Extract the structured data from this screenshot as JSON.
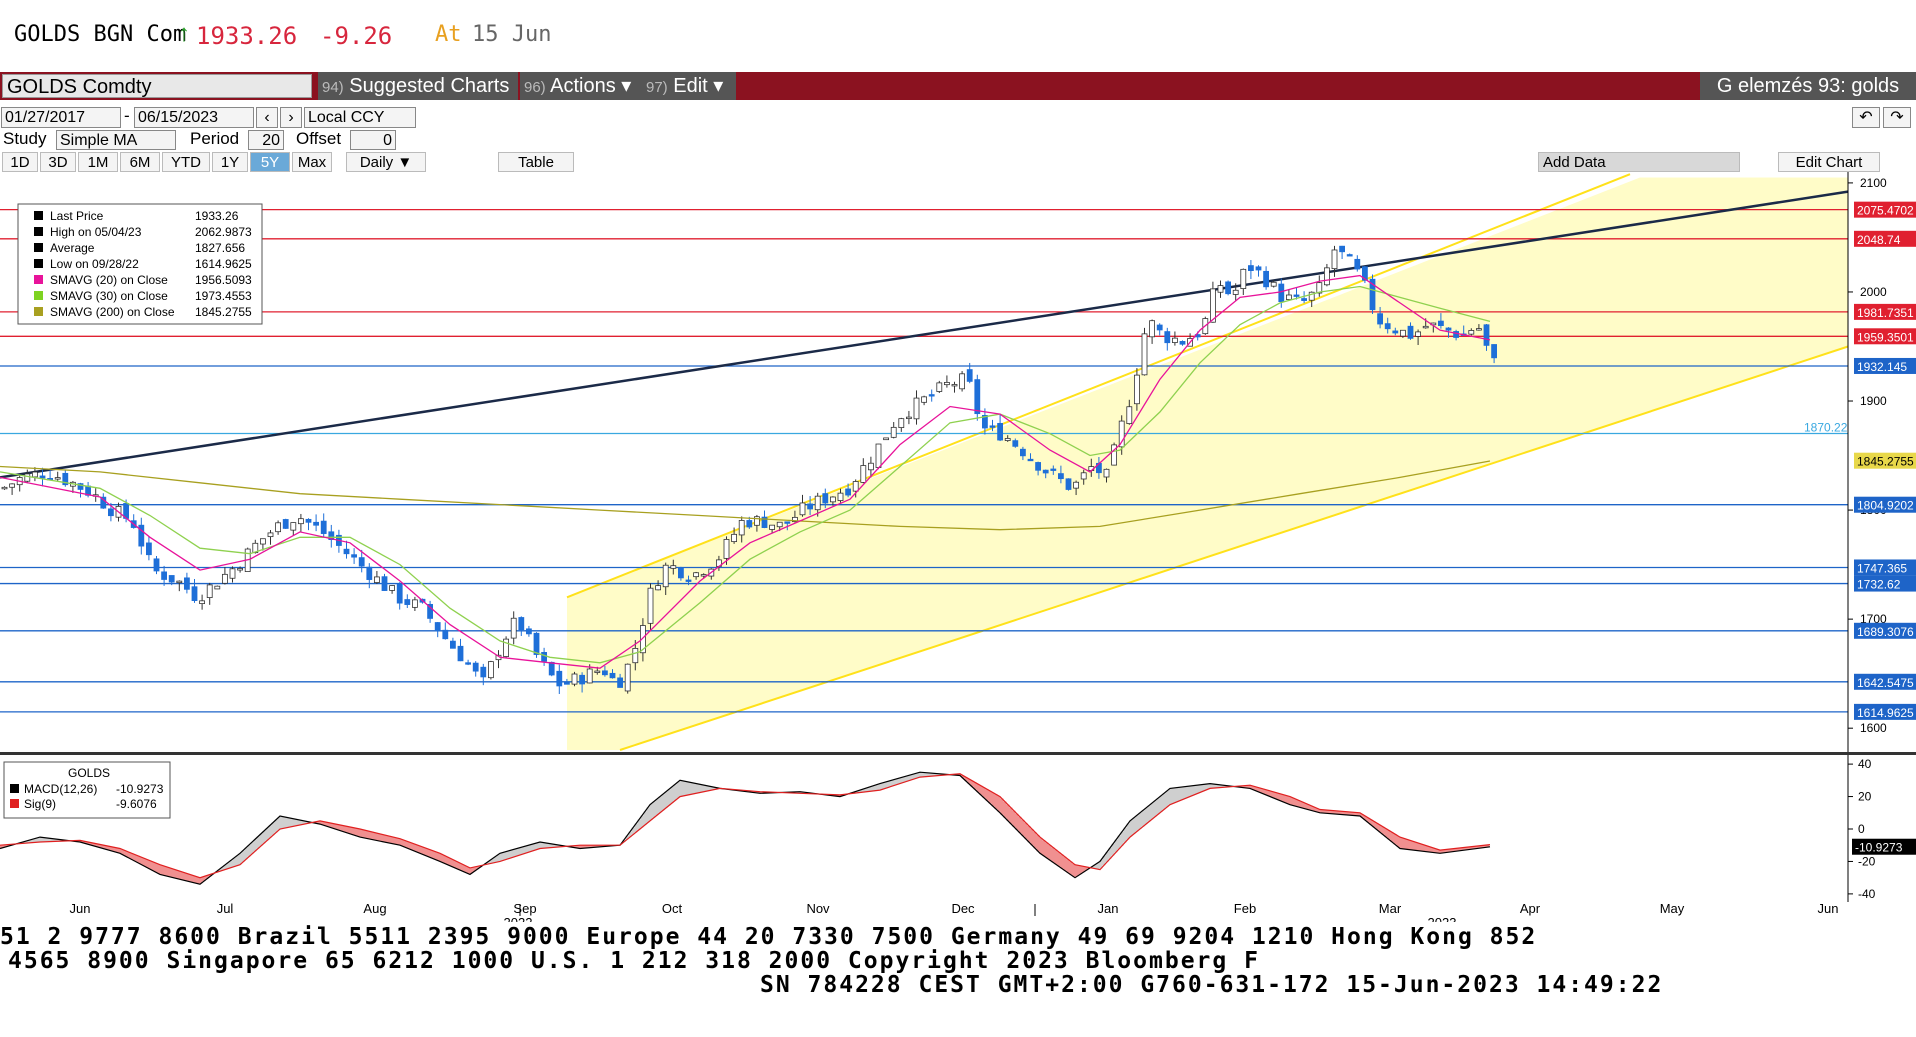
{
  "header": {
    "ticker": "GOLDS BGN Com",
    "arrow": "↑",
    "price": "1933.26",
    "change": "-9.26",
    "at_label": "At",
    "date": "15 Jun"
  },
  "toolbar": {
    "security": "GOLDS Comdty",
    "suggested_num": "94)",
    "suggested": "Suggested Charts",
    "actions_num": "96)",
    "actions": "Actions ▾",
    "edit_num": "97)",
    "edit": "Edit ▾",
    "right_label": "G elemzés 93: golds"
  },
  "controls": {
    "start_date": "01/27/2017",
    "end_date": "06/15/2023",
    "currency": "Local CCY",
    "study_label": "Study",
    "study_value": "Simple MA",
    "period_label": "Period",
    "period_value": "20",
    "offset_label": "Offset",
    "offset_value": "0",
    "ranges": [
      "1D",
      "3D",
      "1M",
      "6M",
      "YTD",
      "1Y",
      "5Y",
      "Max"
    ],
    "selected_range": "5Y",
    "frequency": "Daily ▼",
    "table_label": "Table",
    "add_data": "Add Data",
    "edit_chart": "Edit Chart"
  },
  "legend": {
    "items": [
      {
        "label": "Last Price",
        "value": "1933.26",
        "color": "#000000"
      },
      {
        "label": "High on 05/04/23",
        "value": "2062.9873",
        "color": "#000000"
      },
      {
        "label": "Average",
        "value": "1827.656",
        "color": "#000000"
      },
      {
        "label": "Low on 09/28/22",
        "value": "1614.9625",
        "color": "#000000"
      },
      {
        "label": "SMAVG (20)  on Close",
        "value": "1956.5093",
        "color": "#e8139a"
      },
      {
        "label": "SMAVG (30)  on Close",
        "value": "1973.4553",
        "color": "#7ed321"
      },
      {
        "label": "SMAVG (200)  on Close",
        "value": "1845.2755",
        "color": "#a8a020"
      }
    ]
  },
  "macd_legend": {
    "title": "GOLDS",
    "items": [
      {
        "label": "MACD(12,26)",
        "value": "-10.9273",
        "color": "#000000"
      },
      {
        "label": "Sig(9)",
        "value": "-9.6076",
        "color": "#e02020"
      }
    ]
  },
  "chart_data": {
    "type": "line",
    "price_axis": {
      "ylim": [
        1580,
        2110
      ],
      "ticks": [
        "1600",
        "1700",
        "1800",
        "1900",
        "2000",
        "2100"
      ]
    },
    "macd_axis": {
      "ylim": [
        -45,
        45
      ],
      "ticks": [
        "-40",
        "-20",
        "0",
        "20",
        "40"
      ]
    },
    "x_labels": [
      "Jun",
      "Jul",
      "Aug",
      "Sep",
      "Oct",
      "Nov",
      "Dec",
      "Jan",
      "Feb",
      "Mar",
      "Apr",
      "May",
      "Jun"
    ],
    "year_labels": [
      "2022",
      "2023"
    ],
    "horizontal_levels": [
      {
        "value": 2075.4702,
        "label": "2075.4702",
        "color": "#e02030"
      },
      {
        "value": 2048.74,
        "label": "2048.74",
        "color": "#e02030"
      },
      {
        "value": 1981.7351,
        "label": "1981.7351",
        "color": "#e02030"
      },
      {
        "value": 1959.3501,
        "label": "1959.3501",
        "color": "#e02030"
      },
      {
        "value": 1932.145,
        "label": "1932.145",
        "color": "#1e64c8"
      },
      {
        "value": 1870.22,
        "label": "1870.22",
        "color": "#3aa8e0"
      },
      {
        "value": 1845.2755,
        "label": "1845.2755",
        "color": "#a8a020"
      },
      {
        "value": 1804.9202,
        "label": "1804.9202",
        "color": "#1e64c8"
      },
      {
        "value": 1747.365,
        "label": "1747.365",
        "color": "#1e64c8"
      },
      {
        "value": 1732.62,
        "label": "1732.62",
        "color": "#1e64c8"
      },
      {
        "value": 1689.3076,
        "label": "1689.3076",
        "color": "#1e64c8"
      },
      {
        "value": 1642.5475,
        "label": "1642.5475",
        "color": "#1e64c8"
      },
      {
        "value": 1614.9625,
        "label": "1614.9625",
        "color": "#1e64c8"
      }
    ],
    "close_keypoints": [
      [
        0,
        1820
      ],
      [
        20,
        1830
      ],
      [
        45,
        1835
      ],
      [
        70,
        1825
      ],
      [
        90,
        1815
      ],
      [
        110,
        1800
      ],
      [
        130,
        1790
      ],
      [
        150,
        1745
      ],
      [
        175,
        1735
      ],
      [
        195,
        1720
      ],
      [
        215,
        1735
      ],
      [
        235,
        1750
      ],
      [
        255,
        1770
      ],
      [
        275,
        1785
      ],
      [
        295,
        1795
      ],
      [
        320,
        1780
      ],
      [
        345,
        1760
      ],
      [
        370,
        1740
      ],
      [
        395,
        1720
      ],
      [
        420,
        1710
      ],
      [
        445,
        1680
      ],
      [
        465,
        1660
      ],
      [
        480,
        1640
      ],
      [
        500,
        1680
      ],
      [
        515,
        1700
      ],
      [
        535,
        1665
      ],
      [
        555,
        1640
      ],
      [
        575,
        1645
      ],
      [
        600,
        1655
      ],
      [
        615,
        1640
      ],
      [
        630,
        1665
      ],
      [
        650,
        1730
      ],
      [
        665,
        1750
      ],
      [
        690,
        1740
      ],
      [
        715,
        1755
      ],
      [
        740,
        1790
      ],
      [
        760,
        1790
      ],
      [
        780,
        1785
      ],
      [
        800,
        1800
      ],
      [
        820,
        1810
      ],
      [
        845,
        1820
      ],
      [
        870,
        1850
      ],
      [
        895,
        1885
      ],
      [
        920,
        1900
      ],
      [
        945,
        1915
      ],
      [
        965,
        1920
      ],
      [
        980,
        1875
      ],
      [
        1000,
        1870
      ],
      [
        1020,
        1855
      ],
      [
        1045,
        1835
      ],
      [
        1070,
        1820
      ],
      [
        1090,
        1840
      ],
      [
        1105,
        1830
      ],
      [
        1115,
        1865
      ],
      [
        1130,
        1910
      ],
      [
        1145,
        1975
      ],
      [
        1160,
        1960
      ],
      [
        1180,
        1955
      ],
      [
        1200,
        1965
      ],
      [
        1215,
        2010
      ],
      [
        1230,
        1995
      ],
      [
        1245,
        2025
      ],
      [
        1260,
        2015
      ],
      [
        1280,
        1995
      ],
      [
        1300,
        1990
      ],
      [
        1320,
        2005
      ],
      [
        1330,
        2040
      ],
      [
        1345,
        2030
      ],
      [
        1360,
        2010
      ],
      [
        1375,
        1975
      ],
      [
        1395,
        1965
      ],
      [
        1410,
        1960
      ],
      [
        1425,
        1970
      ],
      [
        1445,
        1965
      ],
      [
        1460,
        1960
      ],
      [
        1475,
        1970
      ],
      [
        1490,
        1935
      ]
    ],
    "sma20_keypoints": [
      [
        0,
        1830
      ],
      [
        100,
        1812
      ],
      [
        150,
        1775
      ],
      [
        200,
        1745
      ],
      [
        250,
        1755
      ],
      [
        300,
        1780
      ],
      [
        350,
        1770
      ],
      [
        400,
        1735
      ],
      [
        450,
        1695
      ],
      [
        500,
        1665
      ],
      [
        550,
        1660
      ],
      [
        600,
        1655
      ],
      [
        640,
        1680
      ],
      [
        700,
        1735
      ],
      [
        750,
        1770
      ],
      [
        800,
        1790
      ],
      [
        850,
        1810
      ],
      [
        900,
        1860
      ],
      [
        950,
        1895
      ],
      [
        1000,
        1888
      ],
      [
        1050,
        1855
      ],
      [
        1090,
        1835
      ],
      [
        1120,
        1860
      ],
      [
        1160,
        1920
      ],
      [
        1200,
        1965
      ],
      [
        1240,
        1995
      ],
      [
        1280,
        2000
      ],
      [
        1320,
        2010
      ],
      [
        1360,
        2015
      ],
      [
        1400,
        1990
      ],
      [
        1440,
        1965
      ],
      [
        1490,
        1956
      ]
    ],
    "sma30_keypoints": [
      [
        0,
        1835
      ],
      [
        100,
        1820
      ],
      [
        150,
        1795
      ],
      [
        200,
        1765
      ],
      [
        250,
        1760
      ],
      [
        300,
        1775
      ],
      [
        350,
        1775
      ],
      [
        400,
        1750
      ],
      [
        450,
        1710
      ],
      [
        500,
        1680
      ],
      [
        550,
        1665
      ],
      [
        600,
        1660
      ],
      [
        640,
        1670
      ],
      [
        700,
        1715
      ],
      [
        750,
        1755
      ],
      [
        800,
        1780
      ],
      [
        850,
        1800
      ],
      [
        900,
        1840
      ],
      [
        950,
        1880
      ],
      [
        1000,
        1888
      ],
      [
        1050,
        1870
      ],
      [
        1090,
        1850
      ],
      [
        1120,
        1855
      ],
      [
        1160,
        1890
      ],
      [
        1200,
        1935
      ],
      [
        1240,
        1970
      ],
      [
        1280,
        1990
      ],
      [
        1320,
        2000
      ],
      [
        1360,
        2005
      ],
      [
        1400,
        1995
      ],
      [
        1440,
        1985
      ],
      [
        1490,
        1973
      ]
    ],
    "sma200_keypoints": [
      [
        0,
        1840
      ],
      [
        100,
        1835
      ],
      [
        200,
        1825
      ],
      [
        300,
        1815
      ],
      [
        400,
        1810
      ],
      [
        500,
        1805
      ],
      [
        600,
        1800
      ],
      [
        700,
        1795
      ],
      [
        800,
        1790
      ],
      [
        900,
        1785
      ],
      [
        1000,
        1782
      ],
      [
        1100,
        1785
      ],
      [
        1200,
        1800
      ],
      [
        1300,
        1815
      ],
      [
        1400,
        1830
      ],
      [
        1490,
        1845
      ]
    ],
    "macd_keypoints": [
      [
        0,
        -12
      ],
      [
        40,
        -5
      ],
      [
        80,
        -8
      ],
      [
        120,
        -15
      ],
      [
        160,
        -28
      ],
      [
        200,
        -34
      ],
      [
        240,
        -15
      ],
      [
        280,
        8
      ],
      [
        320,
        3
      ],
      [
        360,
        -5
      ],
      [
        400,
        -10
      ],
      [
        440,
        -20
      ],
      [
        470,
        -28
      ],
      [
        500,
        -15
      ],
      [
        540,
        -8
      ],
      [
        580,
        -12
      ],
      [
        620,
        -10
      ],
      [
        650,
        15
      ],
      [
        680,
        30
      ],
      [
        720,
        25
      ],
      [
        760,
        22
      ],
      [
        800,
        23
      ],
      [
        840,
        20
      ],
      [
        880,
        28
      ],
      [
        920,
        35
      ],
      [
        960,
        33
      ],
      [
        1000,
        10
      ],
      [
        1040,
        -15
      ],
      [
        1075,
        -30
      ],
      [
        1100,
        -20
      ],
      [
        1130,
        5
      ],
      [
        1170,
        25
      ],
      [
        1210,
        28
      ],
      [
        1250,
        25
      ],
      [
        1290,
        15
      ],
      [
        1320,
        10
      ],
      [
        1360,
        8
      ],
      [
        1400,
        -12
      ],
      [
        1440,
        -15
      ],
      [
        1490,
        -11
      ]
    ],
    "signal_keypoints": [
      [
        0,
        -10
      ],
      [
        40,
        -8
      ],
      [
        80,
        -7
      ],
      [
        120,
        -12
      ],
      [
        160,
        -22
      ],
      [
        200,
        -30
      ],
      [
        240,
        -22
      ],
      [
        280,
        0
      ],
      [
        320,
        5
      ],
      [
        360,
        0
      ],
      [
        400,
        -6
      ],
      [
        440,
        -15
      ],
      [
        470,
        -24
      ],
      [
        500,
        -20
      ],
      [
        540,
        -12
      ],
      [
        580,
        -10
      ],
      [
        620,
        -10
      ],
      [
        650,
        5
      ],
      [
        680,
        20
      ],
      [
        720,
        25
      ],
      [
        760,
        23
      ],
      [
        800,
        22
      ],
      [
        840,
        21
      ],
      [
        880,
        24
      ],
      [
        920,
        32
      ],
      [
        960,
        34
      ],
      [
        1000,
        20
      ],
      [
        1040,
        -5
      ],
      [
        1075,
        -22
      ],
      [
        1100,
        -25
      ],
      [
        1130,
        -5
      ],
      [
        1170,
        15
      ],
      [
        1210,
        25
      ],
      [
        1250,
        27
      ],
      [
        1290,
        20
      ],
      [
        1320,
        12
      ],
      [
        1360,
        10
      ],
      [
        1400,
        -5
      ],
      [
        1440,
        -13
      ],
      [
        1490,
        -9.6
      ]
    ],
    "macd_value_label": "-10.9273"
  },
  "footer": {
    "line1": "51 2 9777 8600 Brazil 5511 2395 9000 Europe 44 20 7330 7500 Germany 49 69 9204 1210 Hong Kong 852",
    "line2": "4565 8900       Singapore 65 6212 1000       U.S. 1 212 318 2000         Copyright 2023 Bloomberg F",
    "line3": "SN 784228 CEST GMT+2:00 G760-631-172 15-Jun-2023 14:49:22"
  }
}
